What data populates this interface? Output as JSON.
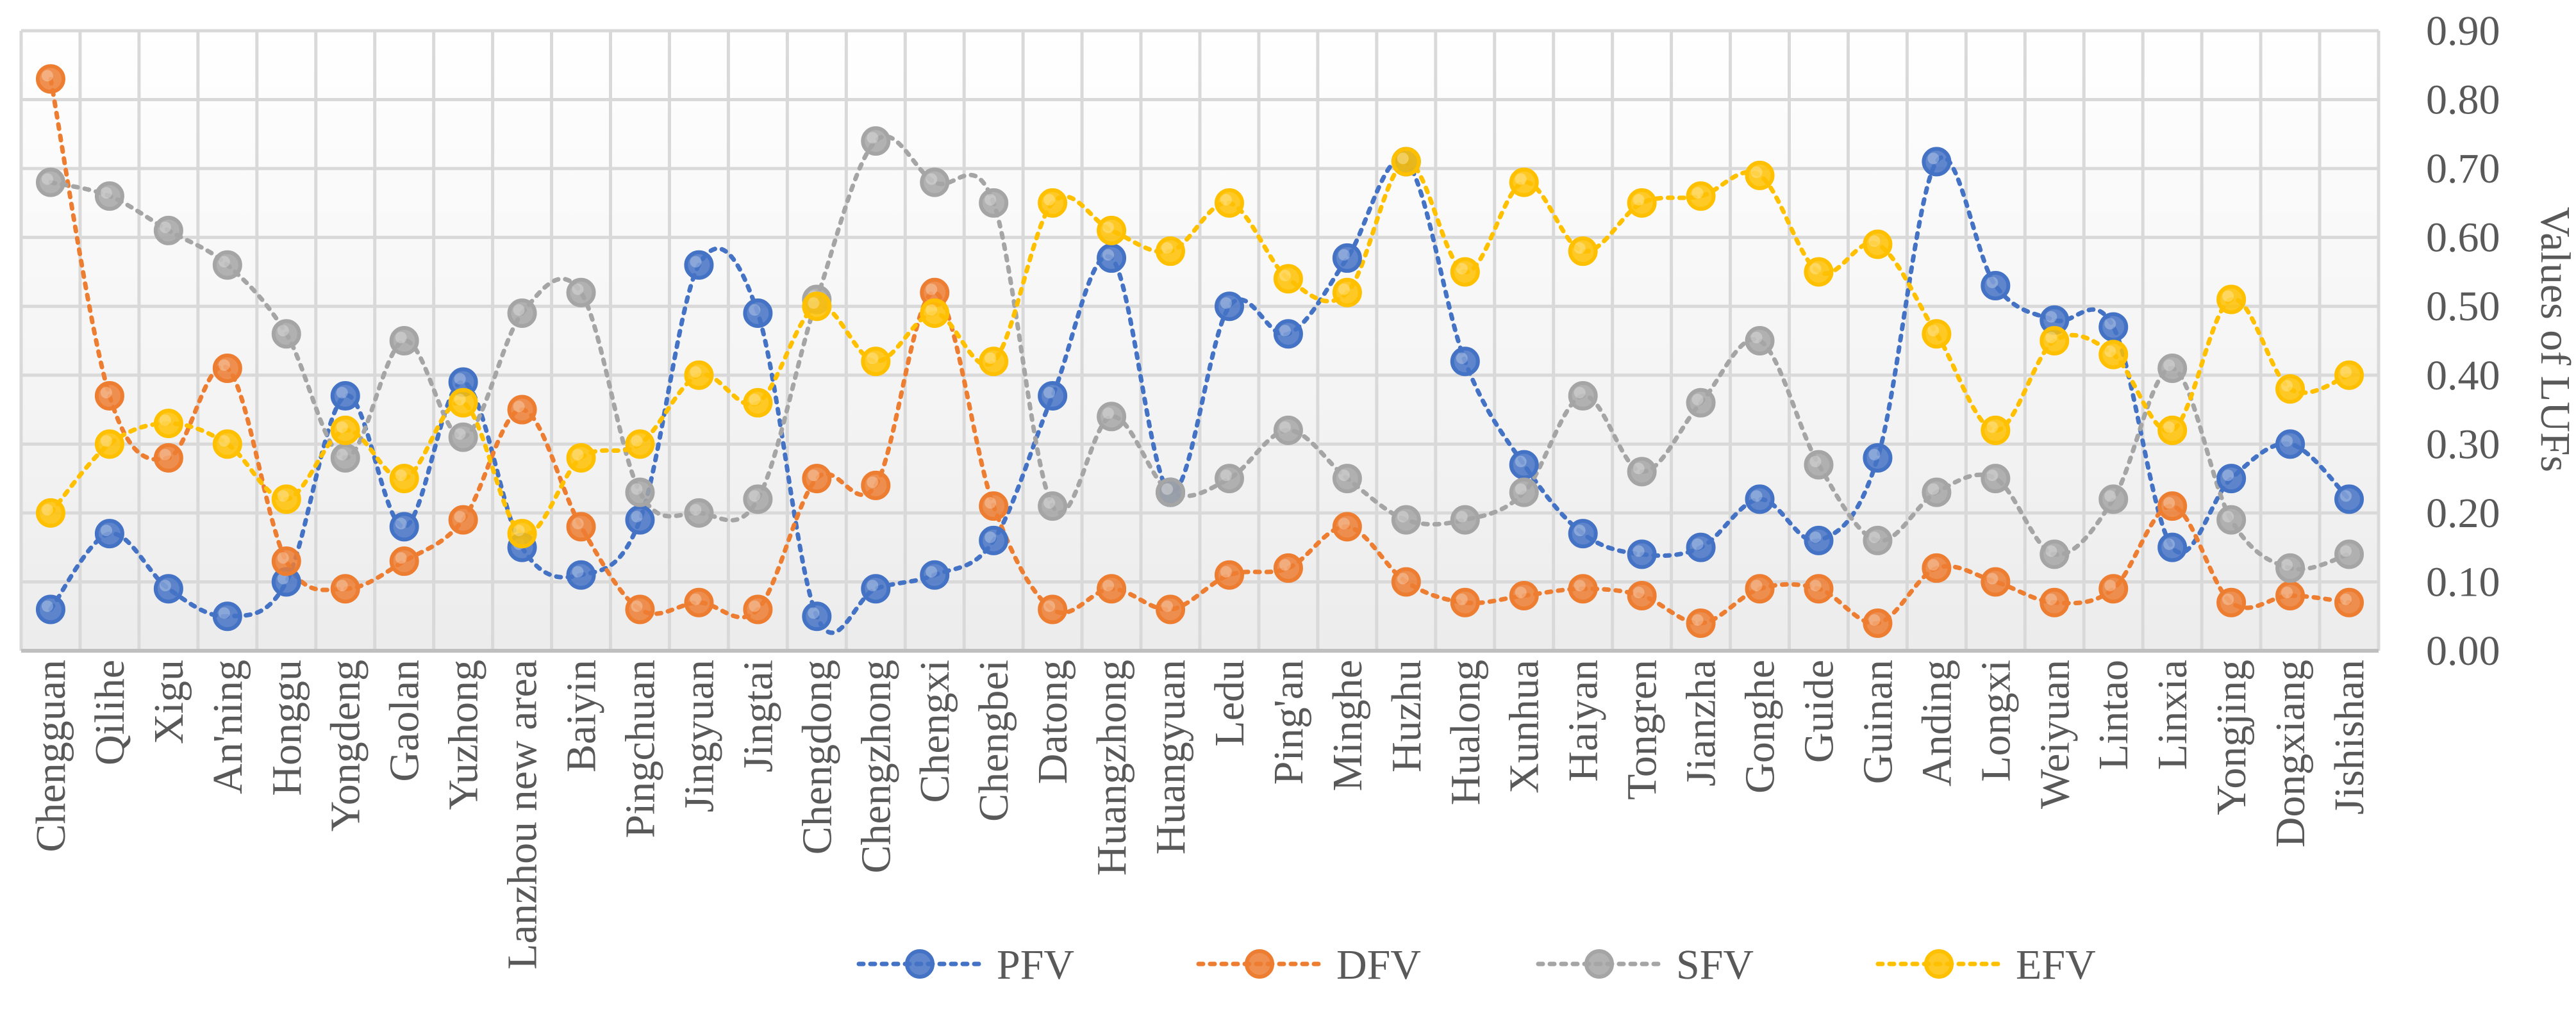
{
  "chart_data": {
    "type": "line",
    "title": "",
    "xlabel": "",
    "ylabel": "Values of LUFs",
    "ylim": [
      0,
      0.9
    ],
    "ytick_step": 0.1,
    "y_axis_side": "right",
    "grid": true,
    "legend_position": "bottom",
    "line_style": "dotted",
    "marker": "circle",
    "categories": [
      "Chengguan",
      "Qilihe",
      "Xigu",
      "An'ning",
      "Honggu",
      "Yongdeng",
      "Gaolan",
      "Yuzhong",
      "Lanzhou new area",
      "Baiyin",
      "Pingchuan",
      "Jingyuan",
      "Jingtai",
      "Chengdong",
      "Chengzhong",
      "Chengxi",
      "Chengbei",
      "Datong",
      "Huangzhong",
      "Huangyuan",
      "Ledu",
      "Ping'an",
      "Minghe",
      "Huzhu",
      "Hualong",
      "Xunhua",
      "Haiyan",
      "Tongren",
      "Jianzha",
      "Gonghe",
      "Guide",
      "Guinan",
      "Anding",
      "Longxi",
      "Weiyuan",
      "Lintao",
      "Linxia",
      "Yongjing",
      "Dongxiang",
      "Jishishan"
    ],
    "series": [
      {
        "name": "PFV",
        "color": "#4472C4",
        "values": [
          0.06,
          0.17,
          0.09,
          0.05,
          0.1,
          0.37,
          0.18,
          0.39,
          0.15,
          0.11,
          0.19,
          0.56,
          0.49,
          0.05,
          0.09,
          0.11,
          0.16,
          0.37,
          0.57,
          0.23,
          0.5,
          0.46,
          0.57,
          0.71,
          0.42,
          0.27,
          0.17,
          0.14,
          0.15,
          0.22,
          0.16,
          0.28,
          0.71,
          0.53,
          0.48,
          0.47,
          0.15,
          0.25,
          0.3,
          0.22
        ]
      },
      {
        "name": "DFV",
        "color": "#ED7D31",
        "values": [
          0.83,
          0.37,
          0.28,
          0.41,
          0.13,
          0.09,
          0.13,
          0.19,
          0.35,
          0.18,
          0.06,
          0.07,
          0.06,
          0.25,
          0.24,
          0.52,
          0.21,
          0.06,
          0.09,
          0.06,
          0.11,
          0.12,
          0.18,
          0.1,
          0.07,
          0.08,
          0.09,
          0.08,
          0.04,
          0.09,
          0.09,
          0.04,
          0.12,
          0.1,
          0.07,
          0.09,
          0.21,
          0.07,
          0.08,
          0.07
        ]
      },
      {
        "name": "SFV",
        "color": "#A5A5A5",
        "values": [
          0.68,
          0.66,
          0.61,
          0.56,
          0.46,
          0.28,
          0.45,
          0.31,
          0.49,
          0.52,
          0.23,
          0.2,
          0.22,
          0.51,
          0.74,
          0.68,
          0.65,
          0.21,
          0.34,
          0.23,
          0.25,
          0.32,
          0.25,
          0.19,
          0.19,
          0.23,
          0.37,
          0.26,
          0.36,
          0.45,
          0.27,
          0.16,
          0.23,
          0.25,
          0.14,
          0.22,
          0.41,
          0.19,
          0.12,
          0.14
        ]
      },
      {
        "name": "EFV",
        "color": "#FFC000",
        "values": [
          0.2,
          0.3,
          0.33,
          0.3,
          0.22,
          0.32,
          0.25,
          0.36,
          0.17,
          0.28,
          0.3,
          0.4,
          0.36,
          0.5,
          0.42,
          0.49,
          0.42,
          0.65,
          0.61,
          0.58,
          0.65,
          0.54,
          0.52,
          0.71,
          0.55,
          0.68,
          0.58,
          0.65,
          0.66,
          0.69,
          0.55,
          0.59,
          0.46,
          0.32,
          0.45,
          0.43,
          0.32,
          0.51,
          0.38,
          0.4
        ]
      }
    ]
  }
}
